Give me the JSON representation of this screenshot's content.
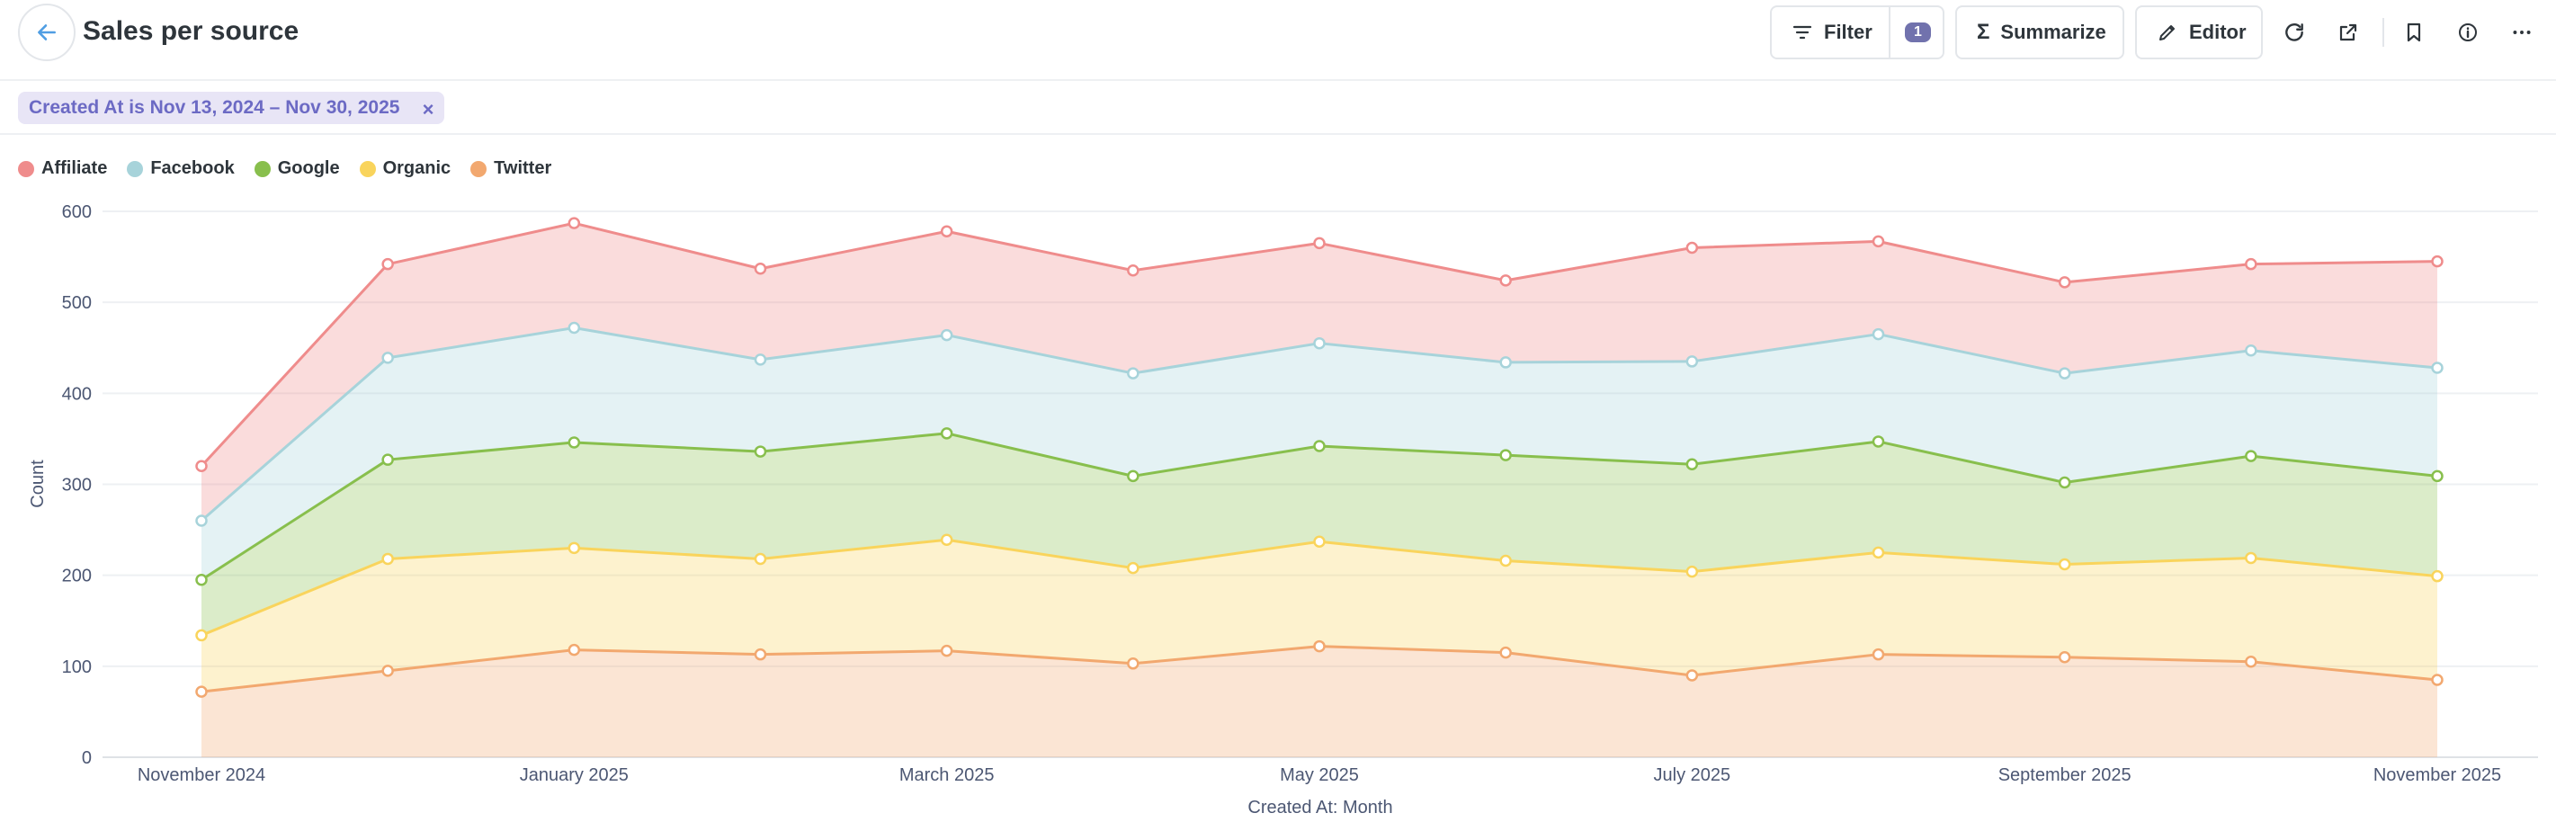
{
  "header": {
    "title": "Sales per source",
    "filter_label": "Filter",
    "filter_count": "1",
    "summarize_label": "Summarize",
    "editor_label": "Editor"
  },
  "filters": {
    "active": "Created At is Nov 13, 2024 – Nov 30, 2025"
  },
  "chart_data": {
    "type": "area",
    "stacked": true,
    "title": "",
    "xlabel": "Created At: Month",
    "ylabel": "Count",
    "ylim": [
      0,
      600
    ],
    "yticks": [
      0,
      100,
      200,
      300,
      400,
      500,
      600
    ],
    "x": [
      "2024-11",
      "2024-12",
      "2025-01",
      "2025-02",
      "2025-03",
      "2025-04",
      "2025-05",
      "2025-06",
      "2025-07",
      "2025-08",
      "2025-09",
      "2025-10",
      "2025-11"
    ],
    "x_tick_labels": [
      {
        "month": "2024-11",
        "label": "November 2024"
      },
      {
        "month": "2025-01",
        "label": "January 2025"
      },
      {
        "month": "2025-03",
        "label": "March 2025"
      },
      {
        "month": "2025-05",
        "label": "May 2025"
      },
      {
        "month": "2025-07",
        "label": "July 2025"
      },
      {
        "month": "2025-09",
        "label": "September 2025"
      },
      {
        "month": "2025-11",
        "label": "November 2025"
      }
    ],
    "grid": true,
    "legend_position": "top-left",
    "series": [
      {
        "name": "Twitter",
        "color": "#f2a86f",
        "values": [
          72,
          95,
          118,
          113,
          117,
          103,
          122,
          115,
          90,
          113,
          110,
          105,
          85
        ]
      },
      {
        "name": "Organic",
        "color": "#f9d45c",
        "values": [
          62,
          123,
          112,
          105,
          122,
          105,
          115,
          101,
          114,
          112,
          102,
          114,
          114
        ]
      },
      {
        "name": "Google",
        "color": "#88bf4d",
        "values": [
          61,
          109,
          116,
          118,
          117,
          101,
          105,
          116,
          118,
          122,
          90,
          112,
          110
        ]
      },
      {
        "name": "Facebook",
        "color": "#a7d3da",
        "values": [
          65,
          112,
          126,
          101,
          108,
          113,
          113,
          102,
          113,
          118,
          120,
          116,
          119
        ]
      },
      {
        "name": "Affiliate",
        "color": "#ef8c8c",
        "values": [
          60,
          103,
          115,
          100,
          114,
          113,
          110,
          90,
          125,
          102,
          100,
          95,
          117
        ]
      }
    ],
    "legend_order": [
      "Affiliate",
      "Facebook",
      "Google",
      "Organic",
      "Twitter"
    ]
  }
}
